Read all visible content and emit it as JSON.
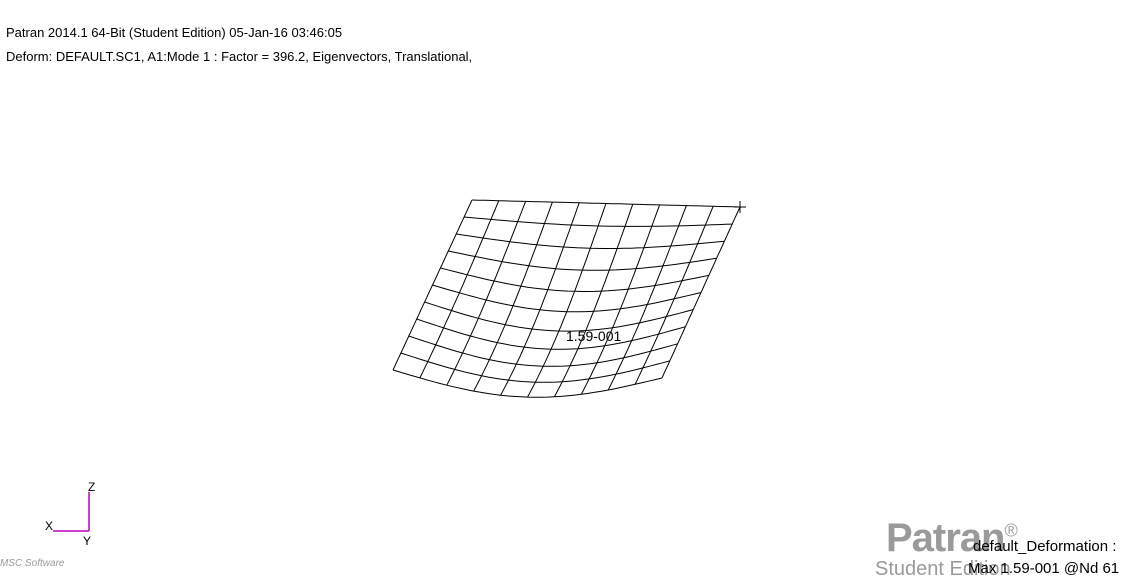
{
  "header": {
    "line1": "Patran 2014.1 64-Bit  (Student Edition) 05-Jan-16 03:46:05",
    "line2": "Deform: DEFAULT.SC1, A1:Mode 1 : Factor = 396.2, Eigenvectors, Translational,"
  },
  "plot": {
    "max_label": "1.59-001",
    "mesh_color": "#000000"
  },
  "axes_triad": {
    "x_label": "X",
    "y_label": "Y",
    "z_label": "Z",
    "color": "#c000c0"
  },
  "branding": {
    "logo": "Patran",
    "trademark": "®",
    "edition": "Student Edition",
    "small_logo": "MSC Software",
    "color": "#9a9a9a"
  },
  "legend": {
    "title": "default_Deformation :",
    "max": "Max 1.59-001 @Nd 61"
  }
}
